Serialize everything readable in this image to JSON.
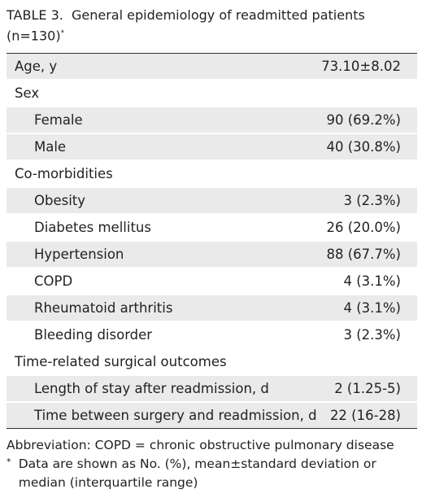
{
  "title": {
    "label": "TABLE 3.",
    "text": "General epidemiology of readmitted patients",
    "n": "(n=130)",
    "marker": "*"
  },
  "table": {
    "rows": [
      {
        "label": "Age, y",
        "value": "73.10±8.02"
      },
      {
        "label": "Sex"
      },
      {
        "label": "Female",
        "value": "90 (69.2%)"
      },
      {
        "label": "Male",
        "value": "40 (30.8%)"
      },
      {
        "label": "Co-morbidities"
      },
      {
        "label": "Obesity",
        "value": "3 (2.3%)"
      },
      {
        "label": "Diabetes mellitus",
        "value": "26 (20.0%)"
      },
      {
        "label": "Hypertension",
        "value": "88 (67.7%)"
      },
      {
        "label": "COPD",
        "value": "4 (3.1%)"
      },
      {
        "label": "Rheumatoid arthritis",
        "value": "4 (3.1%)"
      },
      {
        "label": "Bleeding disorder",
        "value": "3 (2.3%)"
      },
      {
        "label": "Time-related surgical outcomes"
      },
      {
        "label": "Length of stay after readmission, d",
        "value": "2 (1.25-5)"
      },
      {
        "label": "Time between surgery and readmission, d",
        "value": "22 (16-28)"
      }
    ]
  },
  "footnotes": {
    "abbreviation": "Abbreviation: COPD = chronic obstructive pulmonary disease",
    "marker": "*",
    "note": "Data are shown as No. (%), mean±standard deviation or median (interquartile range)"
  }
}
